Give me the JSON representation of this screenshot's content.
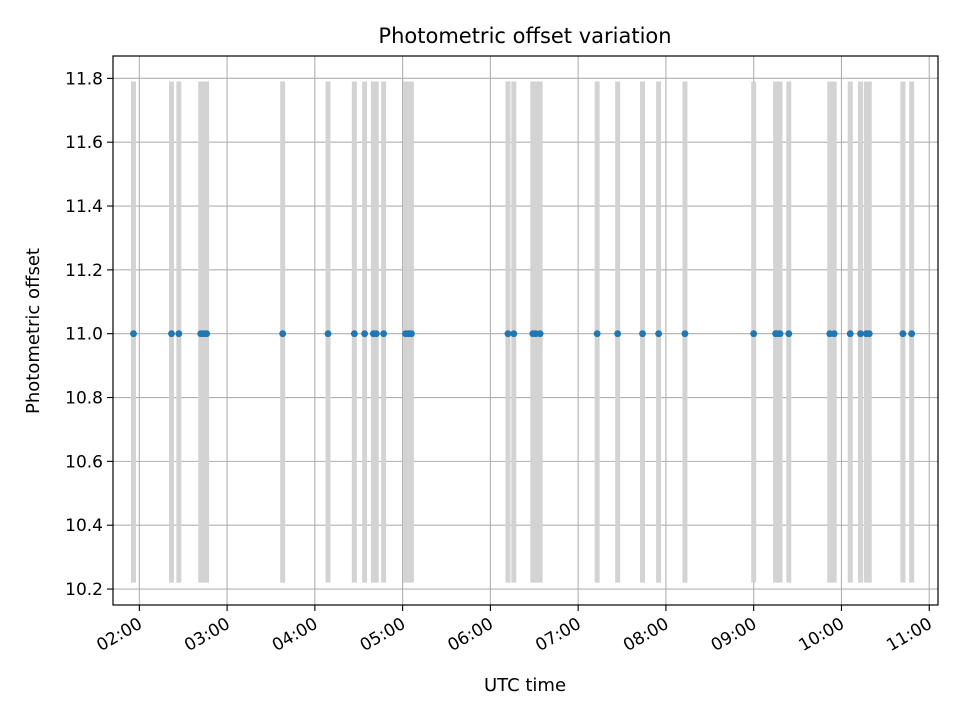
{
  "chart_data": {
    "type": "scatter",
    "title": "Photometric offset variation",
    "xlabel": "UTC time",
    "ylabel": "Photometric offset",
    "xlim": [
      "01:42",
      "11:06"
    ],
    "ylim": [
      10.15,
      11.87
    ],
    "grid": true,
    "x_ticks": [
      "02:00",
      "03:00",
      "04:00",
      "05:00",
      "06:00",
      "07:00",
      "08:00",
      "09:00",
      "10:00",
      "11:00"
    ],
    "y_ticks": [
      "10.2",
      "10.4",
      "10.6",
      "10.8",
      "11.0",
      "11.2",
      "11.4",
      "11.6",
      "11.8"
    ],
    "colors": {
      "points": "#1f77b4",
      "errorbars": "#d3d3d3",
      "grid": "#b0b0b0"
    },
    "series": [
      {
        "values": [
          {
            "x": "01:56",
            "y": 11.0,
            "err_low": 10.22,
            "err_high": 11.79
          },
          {
            "x": "02:22",
            "y": 11.0,
            "err_low": 10.22,
            "err_high": 11.79
          },
          {
            "x": "02:27",
            "y": 11.0,
            "err_low": 10.22,
            "err_high": 11.79
          },
          {
            "x": "02:42",
            "y": 11.0,
            "err_low": 10.22,
            "err_high": 11.79
          },
          {
            "x": "02:44",
            "y": 11.0,
            "err_low": 10.22,
            "err_high": 11.79
          },
          {
            "x": "02:46",
            "y": 11.0,
            "err_low": 10.22,
            "err_high": 11.79
          },
          {
            "x": "03:38",
            "y": 11.0,
            "err_low": 10.22,
            "err_high": 11.79
          },
          {
            "x": "04:09",
            "y": 11.0,
            "err_low": 10.22,
            "err_high": 11.79
          },
          {
            "x": "04:27",
            "y": 11.0,
            "err_low": 10.22,
            "err_high": 11.79
          },
          {
            "x": "04:34",
            "y": 11.0,
            "err_low": 10.22,
            "err_high": 11.79
          },
          {
            "x": "04:40",
            "y": 11.0,
            "err_low": 10.22,
            "err_high": 11.79
          },
          {
            "x": "04:42",
            "y": 11.0,
            "err_low": 10.22,
            "err_high": 11.79
          },
          {
            "x": "04:47",
            "y": 11.0,
            "err_low": 10.22,
            "err_high": 11.79
          },
          {
            "x": "05:02",
            "y": 11.0,
            "err_low": 10.22,
            "err_high": 11.79
          },
          {
            "x": "05:04",
            "y": 11.0,
            "err_low": 10.22,
            "err_high": 11.79
          },
          {
            "x": "05:06",
            "y": 11.0,
            "err_low": 10.22,
            "err_high": 11.79
          },
          {
            "x": "06:12",
            "y": 11.0,
            "err_low": 10.22,
            "err_high": 11.79
          },
          {
            "x": "06:16",
            "y": 11.0,
            "err_low": 10.22,
            "err_high": 11.79
          },
          {
            "x": "06:29",
            "y": 11.0,
            "err_low": 10.22,
            "err_high": 11.79
          },
          {
            "x": "06:31",
            "y": 11.0,
            "err_low": 10.22,
            "err_high": 11.79
          },
          {
            "x": "06:34",
            "y": 11.0,
            "err_low": 10.22,
            "err_high": 11.79
          },
          {
            "x": "07:13",
            "y": 11.0,
            "err_low": 10.22,
            "err_high": 11.79
          },
          {
            "x": "07:27",
            "y": 11.0,
            "err_low": 10.22,
            "err_high": 11.79
          },
          {
            "x": "07:44",
            "y": 11.0,
            "err_low": 10.22,
            "err_high": 11.79
          },
          {
            "x": "07:55",
            "y": 11.0,
            "err_low": 10.22,
            "err_high": 11.79
          },
          {
            "x": "08:13",
            "y": 11.0,
            "err_low": 10.22,
            "err_high": 11.79
          },
          {
            "x": "09:00",
            "y": 11.0,
            "err_low": 10.22,
            "err_high": 11.79
          },
          {
            "x": "09:15",
            "y": 11.0,
            "err_low": 10.22,
            "err_high": 11.79
          },
          {
            "x": "09:16",
            "y": 11.0,
            "err_low": 10.22,
            "err_high": 11.79
          },
          {
            "x": "09:18",
            "y": 11.0,
            "err_low": 10.22,
            "err_high": 11.79
          },
          {
            "x": "09:24",
            "y": 11.0,
            "err_low": 10.22,
            "err_high": 11.79
          },
          {
            "x": "09:52",
            "y": 11.0,
            "err_low": 10.22,
            "err_high": 11.79
          },
          {
            "x": "09:55",
            "y": 11.0,
            "err_low": 10.22,
            "err_high": 11.79
          },
          {
            "x": "10:06",
            "y": 11.0,
            "err_low": 10.22,
            "err_high": 11.79
          },
          {
            "x": "10:13",
            "y": 11.0,
            "err_low": 10.22,
            "err_high": 11.79
          },
          {
            "x": "10:17",
            "y": 11.0,
            "err_low": 10.22,
            "err_high": 11.79
          },
          {
            "x": "10:19",
            "y": 11.0,
            "err_low": 10.22,
            "err_high": 11.79
          },
          {
            "x": "10:42",
            "y": 11.0,
            "err_low": 10.22,
            "err_high": 11.79
          },
          {
            "x": "10:48",
            "y": 11.0,
            "err_low": 10.22,
            "err_high": 11.79
          }
        ]
      }
    ]
  }
}
